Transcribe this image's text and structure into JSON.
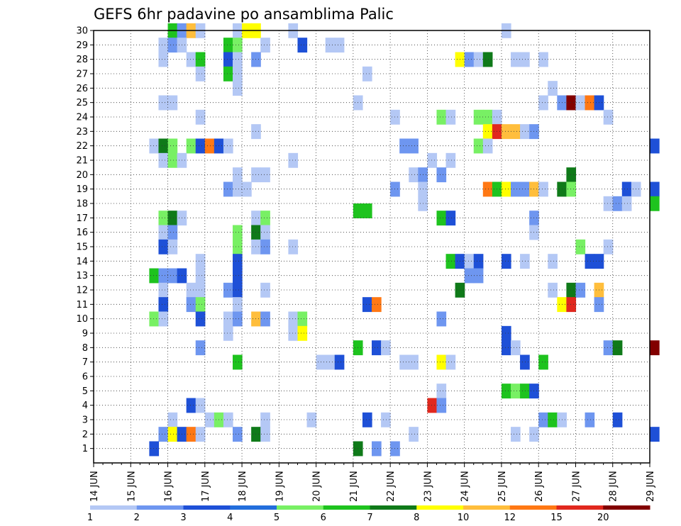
{
  "chart_data": {
    "type": "heatmap",
    "title": "GEFS 6hr padavine po ansamblima Palic",
    "x_tick_labels": [
      "14 JUN",
      "15 JUN",
      "16 JUN",
      "17 JUN",
      "18 JUN",
      "19 JUN",
      "20 JUN",
      "21 JUN",
      "22 JUN",
      "23 JUN",
      "24 JUN",
      "25 JUN",
      "26 JUN",
      "27 JUN",
      "28 JUN",
      "29 JUN"
    ],
    "y_tick_labels": [
      "1",
      "2",
      "3",
      "4",
      "5",
      "6",
      "7",
      "8",
      "9",
      "10",
      "11",
      "12",
      "13",
      "14",
      "15",
      "16",
      "17",
      "18",
      "19",
      "20",
      "21",
      "22",
      "23",
      "24",
      "25",
      "26",
      "27",
      "28",
      "29",
      "30"
    ],
    "ylim": [
      0,
      30
    ],
    "grid": true,
    "colorbar": {
      "labels": [
        "1",
        "2",
        "3",
        "4",
        "5",
        "6",
        "7",
        "8",
        "10",
        "12",
        "15",
        "20"
      ],
      "colors": [
        "#b4c8f5",
        "#6e96f0",
        "#1e50d7",
        "#236edc",
        "#78f064",
        "#1ec31e",
        "#0f7a19",
        "#ffff00",
        "#ffbe3c",
        "#ff7814",
        "#e1281e",
        "#820000"
      ]
    },
    "cells": [
      [
        16,
        30,
        "#1ec31e"
      ],
      [
        16.25,
        30,
        "#6e96f0"
      ],
      [
        16.5,
        30,
        "#ffbe3c"
      ],
      [
        16.75,
        30,
        "#b4c8f5"
      ],
      [
        17.75,
        30,
        "#b4c8f5"
      ],
      [
        18,
        30,
        "#ffff00"
      ],
      [
        18.25,
        30,
        "#ffff00"
      ],
      [
        19.25,
        30,
        "#b4c8f5"
      ],
      [
        25,
        30,
        "#b4c8f5"
      ],
      [
        15.75,
        29,
        "#b4c8f5"
      ],
      [
        16,
        29,
        "#6e96f0"
      ],
      [
        16.25,
        29,
        "#b4c8f5"
      ],
      [
        17.5,
        29,
        "#1ec31e"
      ],
      [
        17.75,
        29,
        "#78f064"
      ],
      [
        18.5,
        29,
        "#b4c8f5"
      ],
      [
        19.5,
        29,
        "#1e50d7"
      ],
      [
        20.25,
        29,
        "#b4c8f5"
      ],
      [
        20.5,
        29,
        "#b4c8f5"
      ],
      [
        15.75,
        28,
        "#b4c8f5"
      ],
      [
        16.5,
        28,
        "#b4c8f5"
      ],
      [
        16.75,
        28,
        "#1ec31e"
      ],
      [
        17.5,
        28,
        "#1e50d7"
      ],
      [
        17.75,
        28,
        "#b4c8f5"
      ],
      [
        18.25,
        28,
        "#6e96f0"
      ],
      [
        23.75,
        28,
        "#ffff00"
      ],
      [
        24,
        28,
        "#6e96f0"
      ],
      [
        24.25,
        28,
        "#b4c8f5"
      ],
      [
        24.5,
        28,
        "#0f7a19"
      ],
      [
        25.25,
        28,
        "#b4c8f5"
      ],
      [
        25.5,
        28,
        "#b4c8f5"
      ],
      [
        26,
        28,
        "#b4c8f5"
      ],
      [
        16.75,
        27,
        "#b4c8f5"
      ],
      [
        17.5,
        27,
        "#1ec31e"
      ],
      [
        17.75,
        27,
        "#b4c8f5"
      ],
      [
        21.25,
        27,
        "#b4c8f5"
      ],
      [
        17.75,
        26,
        "#b4c8f5"
      ],
      [
        26.25,
        26,
        "#b4c8f5"
      ],
      [
        15.75,
        25,
        "#b4c8f5"
      ],
      [
        16,
        25,
        "#b4c8f5"
      ],
      [
        21,
        25,
        "#b4c8f5"
      ],
      [
        26,
        25,
        "#b4c8f5"
      ],
      [
        26.5,
        25,
        "#6e96f0"
      ],
      [
        26.75,
        25,
        "#820000"
      ],
      [
        27,
        25,
        "#b4c8f5"
      ],
      [
        27.25,
        25,
        "#ff7814"
      ],
      [
        27.5,
        25,
        "#1e50d7"
      ],
      [
        16.75,
        24,
        "#b4c8f5"
      ],
      [
        22,
        24,
        "#b4c8f5"
      ],
      [
        23.25,
        24,
        "#78f064"
      ],
      [
        23.5,
        24,
        "#b4c8f5"
      ],
      [
        24.25,
        24,
        "#78f064"
      ],
      [
        24.5,
        24,
        "#78f064"
      ],
      [
        24.75,
        24,
        "#b4c8f5"
      ],
      [
        27.75,
        24,
        "#b4c8f5"
      ],
      [
        18.25,
        23,
        "#b4c8f5"
      ],
      [
        24.5,
        23,
        "#ffff00"
      ],
      [
        24.75,
        23,
        "#e1281e"
      ],
      [
        25,
        23,
        "#ffbe3c"
      ],
      [
        25.25,
        23,
        "#ffbe3c"
      ],
      [
        25.5,
        23,
        "#b4c8f5"
      ],
      [
        25.75,
        23,
        "#6e96f0"
      ],
      [
        15.5,
        22,
        "#b4c8f5"
      ],
      [
        15.75,
        22,
        "#0f7a19"
      ],
      [
        16,
        22,
        "#78f064"
      ],
      [
        16.5,
        22,
        "#78f064"
      ],
      [
        16.75,
        22,
        "#1e50d7"
      ],
      [
        17,
        22,
        "#ff7814"
      ],
      [
        17.25,
        22,
        "#1e50d7"
      ],
      [
        17.5,
        22,
        "#b4c8f5"
      ],
      [
        22.25,
        22,
        "#6e96f0"
      ],
      [
        22.5,
        22,
        "#6e96f0"
      ],
      [
        24.25,
        22,
        "#78f064"
      ],
      [
        24.5,
        22,
        "#b4c8f5"
      ],
      [
        29,
        22,
        "#1e50d7"
      ],
      [
        15.75,
        21,
        "#b4c8f5"
      ],
      [
        16,
        21,
        "#78f064"
      ],
      [
        16.25,
        21,
        "#b4c8f5"
      ],
      [
        19.25,
        21,
        "#b4c8f5"
      ],
      [
        23,
        21,
        "#b4c8f5"
      ],
      [
        23.5,
        21,
        "#b4c8f5"
      ],
      [
        17.75,
        20,
        "#b4c8f5"
      ],
      [
        18.25,
        20,
        "#b4c8f5"
      ],
      [
        18.5,
        20,
        "#b4c8f5"
      ],
      [
        22.5,
        20,
        "#b4c8f5"
      ],
      [
        22.75,
        20,
        "#6e96f0"
      ],
      [
        23.25,
        20,
        "#6e96f0"
      ],
      [
        26.75,
        20,
        "#0f7a19"
      ],
      [
        17.5,
        19,
        "#6e96f0"
      ],
      [
        17.75,
        19,
        "#b4c8f5"
      ],
      [
        18,
        19,
        "#b4c8f5"
      ],
      [
        22,
        19,
        "#6e96f0"
      ],
      [
        22.75,
        19,
        "#b4c8f5"
      ],
      [
        24.5,
        19,
        "#ff7814"
      ],
      [
        24.75,
        19,
        "#1ec31e"
      ],
      [
        25,
        19,
        "#ffff00"
      ],
      [
        25.25,
        19,
        "#6e96f0"
      ],
      [
        25.5,
        19,
        "#6e96f0"
      ],
      [
        25.75,
        19,
        "#ffbe3c"
      ],
      [
        26,
        19,
        "#b4c8f5"
      ],
      [
        26.5,
        19,
        "#0f7a19"
      ],
      [
        26.75,
        19,
        "#78f064"
      ],
      [
        28.25,
        19,
        "#1e50d7"
      ],
      [
        28.5,
        19,
        "#b4c8f5"
      ],
      [
        29,
        19,
        "#1e50d7"
      ],
      [
        22.75,
        18,
        "#b4c8f5"
      ],
      [
        27.75,
        18,
        "#b4c8f5"
      ],
      [
        28,
        18,
        "#6e96f0"
      ],
      [
        28.25,
        18,
        "#b4c8f5"
      ],
      [
        29,
        18,
        "#1ec31e"
      ],
      [
        21,
        17.5,
        "#1ec31e"
      ],
      [
        21.25,
        17.5,
        "#1ec31e"
      ],
      [
        15.75,
        17,
        "#78f064"
      ],
      [
        16,
        17,
        "#0f7a19"
      ],
      [
        16.25,
        17,
        "#b4c8f5"
      ],
      [
        18.25,
        17,
        "#b4c8f5"
      ],
      [
        18.5,
        17,
        "#78f064"
      ],
      [
        23.25,
        17,
        "#1ec31e"
      ],
      [
        23.5,
        17,
        "#1e50d7"
      ],
      [
        25.75,
        17,
        "#6e96f0"
      ],
      [
        15.75,
        16,
        "#b4c8f5"
      ],
      [
        16,
        16,
        "#6e96f0"
      ],
      [
        17.75,
        16,
        "#78f064"
      ],
      [
        18.25,
        16,
        "#0f7a19"
      ],
      [
        18.5,
        16,
        "#b4c8f5"
      ],
      [
        25.75,
        16,
        "#b4c8f5"
      ],
      [
        15.75,
        15,
        "#1e50d7"
      ],
      [
        16,
        15,
        "#b4c8f5"
      ],
      [
        17.75,
        15,
        "#78f064"
      ],
      [
        18.25,
        15,
        "#b4c8f5"
      ],
      [
        18.5,
        15,
        "#6e96f0"
      ],
      [
        19.25,
        15,
        "#b4c8f5"
      ],
      [
        27,
        15,
        "#78f064"
      ],
      [
        27.75,
        15,
        "#b4c8f5"
      ],
      [
        16.75,
        14,
        "#b4c8f5"
      ],
      [
        17.75,
        14,
        "#1e50d7"
      ],
      [
        23.5,
        14,
        "#1ec31e"
      ],
      [
        23.75,
        14,
        "#1e50d7"
      ],
      [
        24,
        14,
        "#b4c8f5"
      ],
      [
        24.25,
        14,
        "#1e50d7"
      ],
      [
        25,
        14,
        "#1e50d7"
      ],
      [
        25.5,
        14,
        "#b4c8f5"
      ],
      [
        26.25,
        14,
        "#b4c8f5"
      ],
      [
        27.25,
        14,
        "#1e50d7"
      ],
      [
        27.5,
        14,
        "#1e50d7"
      ],
      [
        15.5,
        13,
        "#1ec31e"
      ],
      [
        15.75,
        13,
        "#6e96f0"
      ],
      [
        16,
        13,
        "#6e96f0"
      ],
      [
        16.25,
        13,
        "#1e50d7"
      ],
      [
        16.75,
        13,
        "#b4c8f5"
      ],
      [
        17.75,
        13,
        "#1e50d7"
      ],
      [
        24,
        13,
        "#6e96f0"
      ],
      [
        24.25,
        13,
        "#6e96f0"
      ],
      [
        15.75,
        12,
        "#b4c8f5"
      ],
      [
        16.5,
        12,
        "#b4c8f5"
      ],
      [
        16.75,
        12,
        "#b4c8f5"
      ],
      [
        17.5,
        12,
        "#6e96f0"
      ],
      [
        17.75,
        12,
        "#1e50d7"
      ],
      [
        18.5,
        12,
        "#b4c8f5"
      ],
      [
        23.75,
        12,
        "#0f7a19"
      ],
      [
        26.25,
        12,
        "#b4c8f5"
      ],
      [
        26.75,
        12,
        "#0f7a19"
      ],
      [
        27,
        12,
        "#6e96f0"
      ],
      [
        27.5,
        12,
        "#ffbe3c"
      ],
      [
        15.75,
        11,
        "#1e50d7"
      ],
      [
        16.5,
        11,
        "#6e96f0"
      ],
      [
        16.75,
        11,
        "#78f064"
      ],
      [
        17.75,
        11,
        "#b4c8f5"
      ],
      [
        21.25,
        11,
        "#1e50d7"
      ],
      [
        21.5,
        11,
        "#ff7814"
      ],
      [
        26.5,
        11,
        "#ffff00"
      ],
      [
        26.75,
        11,
        "#e1281e"
      ],
      [
        27.5,
        11,
        "#6e96f0"
      ],
      [
        15.5,
        10,
        "#78f064"
      ],
      [
        15.75,
        10,
        "#b4c8f5"
      ],
      [
        16.75,
        10,
        "#1e50d7"
      ],
      [
        17.5,
        10,
        "#b4c8f5"
      ],
      [
        17.75,
        10,
        "#6e96f0"
      ],
      [
        18.25,
        10,
        "#ffbe3c"
      ],
      [
        18.5,
        10,
        "#6e96f0"
      ],
      [
        19.25,
        10,
        "#b4c8f5"
      ],
      [
        19.5,
        10,
        "#78f064"
      ],
      [
        23.25,
        10,
        "#6e96f0"
      ],
      [
        17.5,
        9,
        "#b4c8f5"
      ],
      [
        19.25,
        9,
        "#b4c8f5"
      ],
      [
        19.5,
        9,
        "#ffff00"
      ],
      [
        25,
        9,
        "#1e50d7"
      ],
      [
        16.75,
        8,
        "#6e96f0"
      ],
      [
        21,
        8,
        "#1ec31e"
      ],
      [
        21.5,
        8,
        "#1e50d7"
      ],
      [
        21.75,
        8,
        "#b4c8f5"
      ],
      [
        25,
        8,
        "#1e50d7"
      ],
      [
        25.25,
        8,
        "#b4c8f5"
      ],
      [
        27.75,
        8,
        "#6e96f0"
      ],
      [
        28,
        8,
        "#0f7a19"
      ],
      [
        29,
        8,
        "#820000"
      ],
      [
        17.75,
        7,
        "#1ec31e"
      ],
      [
        20,
        7,
        "#b4c8f5"
      ],
      [
        20.25,
        7,
        "#b4c8f5"
      ],
      [
        20.5,
        7,
        "#1e50d7"
      ],
      [
        22.25,
        7,
        "#b4c8f5"
      ],
      [
        22.5,
        7,
        "#b4c8f5"
      ],
      [
        23.25,
        7,
        "#ffff00"
      ],
      [
        23.5,
        7,
        "#b4c8f5"
      ],
      [
        25.5,
        7,
        "#1e50d7"
      ],
      [
        26,
        7,
        "#1ec31e"
      ],
      [
        23.25,
        5,
        "#b4c8f5"
      ],
      [
        25,
        5,
        "#1ec31e"
      ],
      [
        25.25,
        5,
        "#78f064"
      ],
      [
        25.5,
        5,
        "#1ec31e"
      ],
      [
        25.75,
        5,
        "#1e50d7"
      ],
      [
        16.5,
        4,
        "#1e50d7"
      ],
      [
        16.75,
        4,
        "#b4c8f5"
      ],
      [
        23,
        4,
        "#e1281e"
      ],
      [
        23.25,
        4,
        "#6e96f0"
      ],
      [
        16,
        3,
        "#b4c8f5"
      ],
      [
        17,
        3,
        "#b4c8f5"
      ],
      [
        17.25,
        3,
        "#78f064"
      ],
      [
        17.5,
        3,
        "#b4c8f5"
      ],
      [
        18.5,
        3,
        "#b4c8f5"
      ],
      [
        19.75,
        3,
        "#b4c8f5"
      ],
      [
        21.25,
        3,
        "#1e50d7"
      ],
      [
        21.75,
        3,
        "#b4c8f5"
      ],
      [
        26,
        3,
        "#6e96f0"
      ],
      [
        26.25,
        3,
        "#1ec31e"
      ],
      [
        26.5,
        3,
        "#b4c8f5"
      ],
      [
        27.25,
        3,
        "#6e96f0"
      ],
      [
        28,
        3,
        "#1e50d7"
      ],
      [
        15.75,
        2,
        "#6e96f0"
      ],
      [
        16,
        2,
        "#ffff00"
      ],
      [
        16.25,
        2,
        "#1e50d7"
      ],
      [
        16.5,
        2,
        "#ff7814"
      ],
      [
        16.75,
        2,
        "#b4c8f5"
      ],
      [
        17.75,
        2,
        "#6e96f0"
      ],
      [
        18.25,
        2,
        "#0f7a19"
      ],
      [
        18.5,
        2,
        "#b4c8f5"
      ],
      [
        22.5,
        2,
        "#b4c8f5"
      ],
      [
        25.25,
        2,
        "#b4c8f5"
      ],
      [
        25.75,
        2,
        "#b4c8f5"
      ],
      [
        29,
        2,
        "#1e50d7"
      ],
      [
        15.5,
        1,
        "#1e50d7"
      ],
      [
        21,
        1,
        "#0f7a19"
      ],
      [
        21.5,
        1,
        "#6e96f0"
      ],
      [
        22,
        1,
        "#6e96f0"
      ]
    ]
  }
}
